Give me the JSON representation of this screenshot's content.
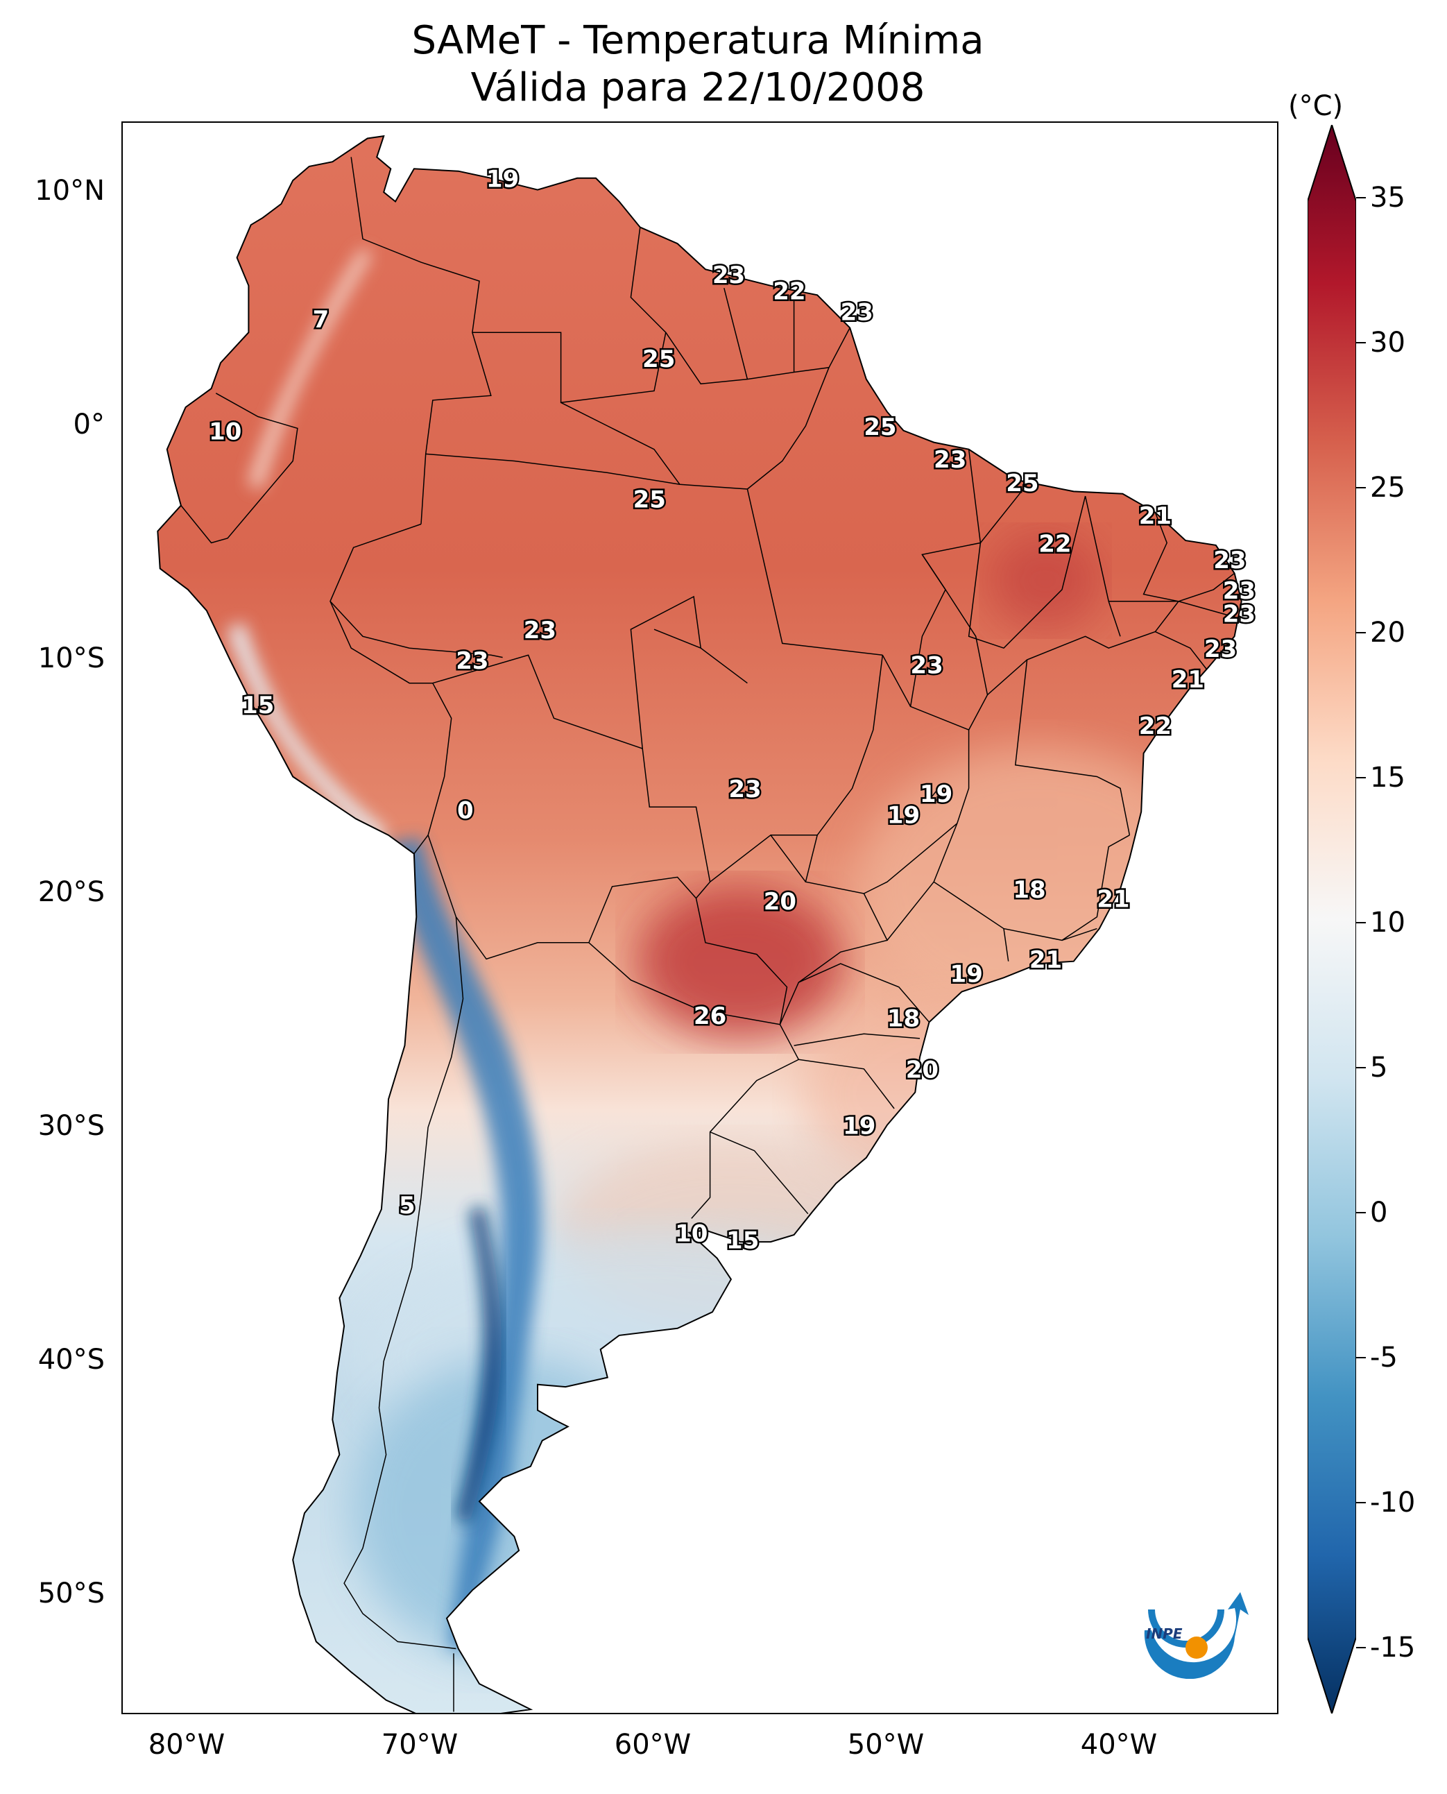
{
  "title": {
    "line1": "SAMeT - Temperatura Mínima",
    "line2": "Válida para 22/10/2008"
  },
  "map": {
    "lon_ticks": [
      "80°W",
      "70°W",
      "60°W",
      "50°W",
      "40°W"
    ],
    "lat_ticks": [
      "10°N",
      "0°",
      "10°S",
      "20°S",
      "30°S",
      "40°S",
      "50°S"
    ],
    "station_labels": [
      {
        "value": "19",
        "lon": -66.5,
        "lat": 10.5
      },
      {
        "value": "7",
        "lon": -74.3,
        "lat": 4.5
      },
      {
        "value": "23",
        "lon": -56.8,
        "lat": 6.4
      },
      {
        "value": "22",
        "lon": -54.2,
        "lat": 5.7
      },
      {
        "value": "23",
        "lon": -51.3,
        "lat": 4.8
      },
      {
        "value": "25",
        "lon": -59.8,
        "lat": 2.8
      },
      {
        "value": "10",
        "lon": -78.4,
        "lat": -0.3
      },
      {
        "value": "25",
        "lon": -50.3,
        "lat": -0.1
      },
      {
        "value": "23",
        "lon": -47.3,
        "lat": -1.5
      },
      {
        "value": "25",
        "lon": -60.2,
        "lat": -3.2
      },
      {
        "value": "25",
        "lon": -44.2,
        "lat": -2.5
      },
      {
        "value": "21",
        "lon": -38.5,
        "lat": -3.9
      },
      {
        "value": "22",
        "lon": -42.8,
        "lat": -5.1
      },
      {
        "value": "23",
        "lon": -35.3,
        "lat": -5.8
      },
      {
        "value": "23",
        "lon": -34.9,
        "lat": -7.1
      },
      {
        "value": "23",
        "lon": -34.9,
        "lat": -8.1
      },
      {
        "value": "23",
        "lon": -64.9,
        "lat": -8.8
      },
      {
        "value": "23",
        "lon": -67.8,
        "lat": -10.1
      },
      {
        "value": "23",
        "lon": -48.3,
        "lat": -10.3
      },
      {
        "value": "23",
        "lon": -35.7,
        "lat": -9.6
      },
      {
        "value": "21",
        "lon": -37.1,
        "lat": -10.9
      },
      {
        "value": "15",
        "lon": -77.0,
        "lat": -12.0
      },
      {
        "value": "22",
        "lon": -38.5,
        "lat": -12.9
      },
      {
        "value": "23",
        "lon": -56.1,
        "lat": -15.6
      },
      {
        "value": "19",
        "lon": -47.9,
        "lat": -15.8
      },
      {
        "value": "19",
        "lon": -49.3,
        "lat": -16.7
      },
      {
        "value": "0",
        "lon": -68.1,
        "lat": -16.5
      },
      {
        "value": "18",
        "lon": -43.9,
        "lat": -19.9
      },
      {
        "value": "20",
        "lon": -54.6,
        "lat": -20.4
      },
      {
        "value": "21",
        "lon": -40.3,
        "lat": -20.3
      },
      {
        "value": "21",
        "lon": -43.2,
        "lat": -22.9
      },
      {
        "value": "19",
        "lon": -46.6,
        "lat": -23.5
      },
      {
        "value": "26",
        "lon": -57.6,
        "lat": -25.3
      },
      {
        "value": "18",
        "lon": -49.3,
        "lat": -25.4
      },
      {
        "value": "20",
        "lon": -48.5,
        "lat": -27.6
      },
      {
        "value": "19",
        "lon": -51.2,
        "lat": -30.0
      },
      {
        "value": "5",
        "lon": -70.6,
        "lat": -33.4
      },
      {
        "value": "10",
        "lon": -58.4,
        "lat": -34.6
      },
      {
        "value": "15",
        "lon": -56.2,
        "lat": -34.9
      }
    ]
  },
  "colorbar": {
    "unit": "(°C)",
    "min": -15,
    "max": 35,
    "ticks": [
      "35",
      "30",
      "25",
      "20",
      "15",
      "10",
      "5",
      "0",
      "-5",
      "-10",
      "-15"
    ],
    "colors": [
      "#053061",
      "#2166ac",
      "#4393c3",
      "#92c5de",
      "#d1e5f0",
      "#f7f7f7",
      "#fddbc7",
      "#f4a582",
      "#d6604d",
      "#b2182b",
      "#67001f"
    ]
  },
  "logo": {
    "text": "INPE",
    "colors": [
      "#1a7dc0",
      "#f29100"
    ]
  }
}
